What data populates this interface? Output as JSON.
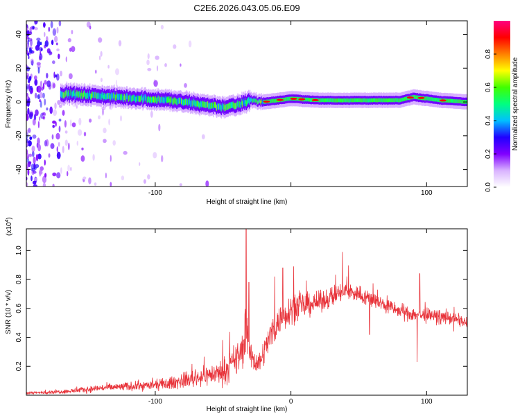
{
  "title": "C2E6.2026.043.05.06.E09",
  "chart_data": [
    {
      "type": "heatmap",
      "title": "C2E6.2026.043.05.06.E09",
      "xlabel": "Height of straight line (km)",
      "ylabel": "Frequency (Hz)",
      "xlim": [
        -195,
        130
      ],
      "ylim": [
        -50,
        48
      ],
      "xticks": [
        -100,
        0,
        100
      ],
      "xtick_labels": [
        "-100",
        "",
        "100"
      ],
      "yticks": [
        -40,
        -20,
        0,
        20,
        40
      ],
      "ytick_labels": [
        "-40",
        "-20",
        "0",
        "20",
        "40"
      ],
      "ridge": {
        "x": [
          -170,
          -150,
          -130,
          -110,
          -90,
          -70,
          -50,
          -40,
          -30,
          -20,
          -10,
          0,
          20,
          40,
          60,
          80,
          90,
          100,
          110,
          130
        ],
        "y": [
          5,
          4,
          3,
          2,
          1,
          -1,
          -3,
          -2,
          1,
          0,
          1,
          2,
          1,
          1,
          1,
          1,
          3,
          2,
          1,
          0
        ],
        "peak_x": [
          -18,
          -8,
          2,
          8,
          18,
          88,
          96,
          112
        ]
      },
      "colorbar": {
        "label": "Normalized spectral amplitude",
        "range": [
          0,
          1
        ],
        "ticks": [
          0,
          0.2,
          0.4,
          0.6,
          0.8
        ],
        "tick_labels": [
          "0.0",
          "0.2",
          "0.4",
          "0.6",
          "0.8"
        ],
        "colors": [
          "#ffffff",
          "#d9b3ff",
          "#8000ff",
          "#2000ff",
          "#00c0ff",
          "#00ff80",
          "#40ff00",
          "#ffff00",
          "#ff8000",
          "#ff0000",
          "#ff0080"
        ]
      }
    },
    {
      "type": "line",
      "xlabel": "Height of straight line (km)",
      "ylabel": "SNR (10 * v/v)",
      "y_multiplier": "(x10",
      "y_multiplier_exp": "4",
      "y_multiplier_close": ")",
      "xlim": [
        -195,
        130
      ],
      "ylim": [
        0,
        1.15
      ],
      "xticks": [
        -100,
        0,
        100
      ],
      "xtick_labels": [
        "-100",
        "0",
        "100"
      ],
      "yticks": [
        0.2,
        0.4,
        0.6,
        0.8,
        1.0
      ],
      "ytick_labels": [
        "0.2",
        "0.4",
        "0.6",
        "0.8",
        "1.0"
      ],
      "color": "#e8333a",
      "envelope": {
        "x": [
          -195,
          -180,
          -160,
          -140,
          -120,
          -100,
          -90,
          -80,
          -70,
          -60,
          -50,
          -45,
          -40,
          -36,
          -33,
          -30,
          -25,
          -20,
          -15,
          -10,
          -5,
          0,
          10,
          20,
          30,
          40,
          50,
          60,
          70,
          80,
          90,
          100,
          110,
          120,
          130
        ],
        "y": [
          0.015,
          0.02,
          0.03,
          0.05,
          0.06,
          0.07,
          0.08,
          0.1,
          0.12,
          0.14,
          0.16,
          0.2,
          0.25,
          0.3,
          0.45,
          0.3,
          0.2,
          0.3,
          0.42,
          0.5,
          0.55,
          0.6,
          0.62,
          0.64,
          0.68,
          0.72,
          0.7,
          0.66,
          0.62,
          0.58,
          0.56,
          0.55,
          0.54,
          0.53,
          0.5
        ],
        "noise": [
          0.01,
          0.012,
          0.02,
          0.03,
          0.035,
          0.04,
          0.05,
          0.06,
          0.07,
          0.08,
          0.1,
          0.12,
          0.14,
          0.15,
          0.2,
          0.12,
          0.08,
          0.1,
          0.12,
          0.12,
          0.12,
          0.12,
          0.1,
          0.08,
          0.08,
          0.08,
          0.07,
          0.07,
          0.06,
          0.06,
          0.06,
          0.06,
          0.05,
          0.05,
          0.05
        ]
      },
      "spikes": [
        {
          "x": -33,
          "y": 1.15
        },
        {
          "x": -31,
          "y": 0.78
        },
        {
          "x": -12,
          "y": 0.82
        },
        {
          "x": -6,
          "y": 0.88
        },
        {
          "x": 2,
          "y": 0.89
        },
        {
          "x": 38,
          "y": 0.99
        },
        {
          "x": 95,
          "y": 0.84
        },
        {
          "x": 93,
          "y": 0.23
        },
        {
          "x": 58,
          "y": 0.42
        },
        {
          "x": 120,
          "y": 0.44
        }
      ]
    }
  ]
}
